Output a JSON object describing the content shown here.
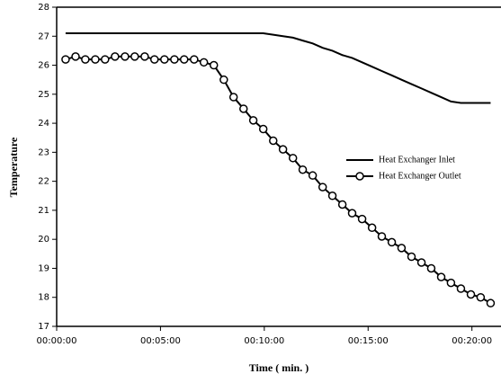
{
  "chart_data": {
    "type": "line",
    "xlabel": "Time ( min. )",
    "ylabel": "Temperature",
    "x": [
      0.43,
      0.91,
      1.38,
      1.86,
      2.33,
      2.81,
      3.29,
      3.76,
      4.24,
      4.71,
      5.19,
      5.67,
      6.14,
      6.62,
      7.09,
      7.57,
      8.05,
      8.52,
      9.0,
      9.47,
      9.95,
      10.43,
      10.9,
      11.38,
      11.85,
      12.33,
      12.81,
      13.28,
      13.76,
      14.23,
      14.71,
      15.19,
      15.66,
      16.14,
      16.61,
      17.09,
      17.57,
      18.04,
      18.52,
      18.99,
      19.47,
      19.95,
      20.42,
      20.9
    ],
    "series": [
      {
        "name": "Heat Exchanger Inlet",
        "color": "#000000",
        "marker": "none",
        "values": [
          27.1,
          27.1,
          27.1,
          27.1,
          27.1,
          27.1,
          27.1,
          27.1,
          27.1,
          27.1,
          27.1,
          27.1,
          27.1,
          27.1,
          27.1,
          27.1,
          27.1,
          27.1,
          27.1,
          27.1,
          27.1,
          27.05,
          27.0,
          26.95,
          26.85,
          26.75,
          26.6,
          26.5,
          26.35,
          26.25,
          26.1,
          25.95,
          25.8,
          25.65,
          25.5,
          25.35,
          25.2,
          25.05,
          24.9,
          24.75,
          24.7,
          24.7,
          24.7,
          24.7
        ]
      },
      {
        "name": "Heat Exchanger Outlet",
        "color": "#000000",
        "marker": "circle",
        "values": [
          26.2,
          26.3,
          26.2,
          26.2,
          26.2,
          26.3,
          26.3,
          26.3,
          26.3,
          26.2,
          26.2,
          26.2,
          26.2,
          26.2,
          26.1,
          26.0,
          25.5,
          24.9,
          24.5,
          24.1,
          23.8,
          23.4,
          23.1,
          22.8,
          22.4,
          22.2,
          21.8,
          21.5,
          21.2,
          20.9,
          20.7,
          20.4,
          20.1,
          19.9,
          19.7,
          19.4,
          19.2,
          19.0,
          18.7,
          18.5,
          18.3,
          18.1,
          18.0,
          17.8
        ]
      }
    ],
    "xlim": [
      0,
      21.4
    ],
    "xticks": [
      {
        "value": 0,
        "label": "00:00:00"
      },
      {
        "value": 5,
        "label": "00:05:00"
      },
      {
        "value": 10,
        "label": "00:10:00"
      },
      {
        "value": 15,
        "label": "00:15:00"
      },
      {
        "value": 20,
        "label": "00:20:00"
      }
    ],
    "ylim": [
      17,
      28
    ],
    "yticks": [
      17,
      18,
      19,
      20,
      21,
      22,
      23,
      24,
      25,
      26,
      27,
      28
    ],
    "grid": false,
    "legend": "right"
  }
}
